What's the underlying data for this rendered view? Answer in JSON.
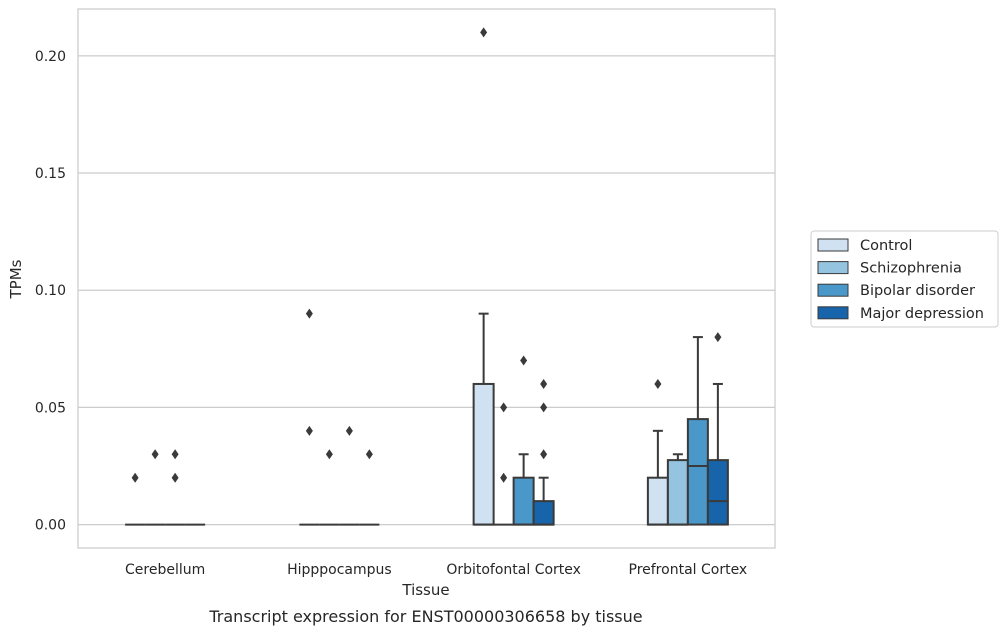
{
  "chart_data": {
    "type": "box",
    "xlabel": "Tissue",
    "ylabel": "TPMs",
    "caption": "Transcript expression for ENST00000306658 by tissue",
    "ylim": [
      -0.01,
      0.22
    ],
    "yticks": [
      0.0,
      0.05,
      0.1,
      0.15,
      0.2
    ],
    "ytick_labels": [
      "0.00",
      "0.05",
      "0.10",
      "0.15",
      "0.20"
    ],
    "grid": "horizontal",
    "legend_position": "right",
    "categories": [
      "Cerebellum",
      "Hipppocampus",
      "Orbitofontal Cortex",
      "Prefrontal Cortex"
    ],
    "series": [
      {
        "name": "Control",
        "color": "#d0e1f2",
        "boxes": [
          {
            "q1": 0,
            "median": 0,
            "q3": 0,
            "whisker_low": 0,
            "whisker_high": 0,
            "outliers": [
              0.02
            ]
          },
          {
            "q1": 0,
            "median": 0,
            "q3": 0,
            "whisker_low": 0,
            "whisker_high": 0,
            "outliers": [
              0.09,
              0.04
            ]
          },
          {
            "q1": 0,
            "median": 0,
            "q3": 0.06,
            "whisker_low": 0,
            "whisker_high": 0.09,
            "outliers": [
              0.21
            ]
          },
          {
            "q1": 0,
            "median": 0,
            "q3": 0.02,
            "whisker_low": 0,
            "whisker_high": 0.04,
            "outliers": [
              0.06
            ]
          }
        ]
      },
      {
        "name": "Schizophrenia",
        "color": "#94c4df",
        "boxes": [
          {
            "q1": 0,
            "median": 0,
            "q3": 0,
            "whisker_low": 0,
            "whisker_high": 0,
            "outliers": [
              0.03
            ]
          },
          {
            "q1": 0,
            "median": 0,
            "q3": 0,
            "whisker_low": 0,
            "whisker_high": 0,
            "outliers": [
              0.03
            ]
          },
          {
            "q1": 0,
            "median": 0,
            "q3": 0,
            "whisker_low": 0,
            "whisker_high": 0,
            "outliers": [
              0.05,
              0.02
            ]
          },
          {
            "q1": 0,
            "median": 0,
            "q3": 0.0275,
            "whisker_low": 0,
            "whisker_high": 0.03,
            "outliers": []
          }
        ]
      },
      {
        "name": "Bipolar disorder",
        "color": "#4a98c9",
        "boxes": [
          {
            "q1": 0,
            "median": 0,
            "q3": 0,
            "whisker_low": 0,
            "whisker_high": 0,
            "outliers": [
              0.03,
              0.02
            ]
          },
          {
            "q1": 0,
            "median": 0,
            "q3": 0,
            "whisker_low": 0,
            "whisker_high": 0,
            "outliers": [
              0.04
            ]
          },
          {
            "q1": 0,
            "median": 0,
            "q3": 0.02,
            "whisker_low": 0,
            "whisker_high": 0.03,
            "outliers": [
              0.07
            ]
          },
          {
            "q1": 0,
            "median": 0.025,
            "q3": 0.045,
            "whisker_low": 0,
            "whisker_high": 0.08,
            "outliers": []
          }
        ]
      },
      {
        "name": "Major depression",
        "color": "#1764ab",
        "boxes": [
          {
            "q1": 0,
            "median": 0,
            "q3": 0,
            "whisker_low": 0,
            "whisker_high": 0,
            "outliers": []
          },
          {
            "q1": 0,
            "median": 0,
            "q3": 0,
            "whisker_low": 0,
            "whisker_high": 0,
            "outliers": [
              0.03
            ]
          },
          {
            "q1": 0,
            "median": 0,
            "q3": 0.01,
            "whisker_low": 0,
            "whisker_high": 0.02,
            "outliers": [
              0.06,
              0.05,
              0.03
            ]
          },
          {
            "q1": 0,
            "median": 0.01,
            "q3": 0.0275,
            "whisker_low": 0,
            "whisker_high": 0.06,
            "outliers": [
              0.08
            ]
          }
        ]
      }
    ]
  },
  "colors": {
    "axes_edge": "#cccccc",
    "grid": "#cccccc",
    "box_line": "#3a3a3a",
    "text": "#262626"
  }
}
